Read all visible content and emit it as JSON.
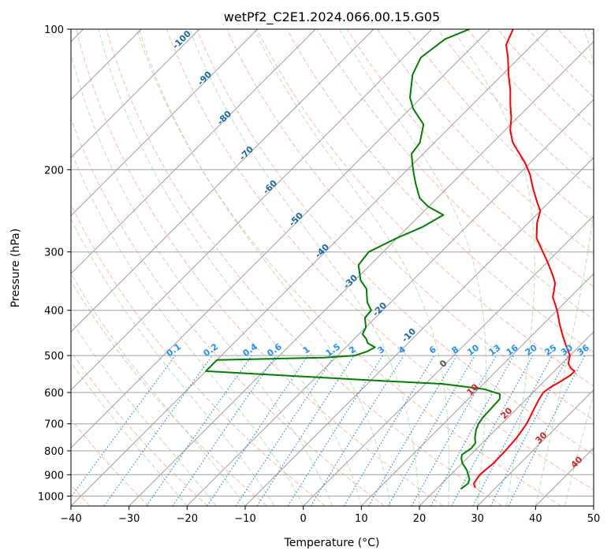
{
  "chart_data": {
    "type": "line",
    "subtype": "skew-t-log-p",
    "title": "wetPf2_C2E1.2024.066.00.15.G05",
    "xlabel": "Temperature (°C)",
    "ylabel": "Pressure (hPa)",
    "xlim": [
      -40,
      50
    ],
    "ylim": [
      1050,
      100
    ],
    "yscale": "log",
    "grid": true,
    "x_ticks": [
      -40,
      -30,
      -20,
      -10,
      0,
      10,
      20,
      30,
      40,
      50
    ],
    "y_ticks": [
      100,
      200,
      300,
      400,
      500,
      600,
      700,
      800,
      900,
      1000
    ],
    "series": [
      {
        "role": "temperature",
        "color": "#ff0000",
        "points": [
          [
            26.5,
            960
          ],
          [
            25.5,
            940
          ],
          [
            25.0,
            900
          ],
          [
            25.4,
            850
          ],
          [
            25.3,
            800
          ],
          [
            25.0,
            750
          ],
          [
            24.3,
            700
          ],
          [
            23.8,
            680
          ],
          [
            23.0,
            650
          ],
          [
            22.2,
            620
          ],
          [
            21.8,
            600
          ],
          [
            22.1,
            585
          ],
          [
            22.8,
            570
          ],
          [
            23.5,
            550
          ],
          [
            23.5,
            540
          ],
          [
            22.3,
            532
          ],
          [
            21.1,
            520
          ],
          [
            20.0,
            500
          ],
          [
            18.0,
            480
          ],
          [
            15.5,
            455
          ],
          [
            13.0,
            430
          ],
          [
            10.0,
            400
          ],
          [
            7.0,
            375
          ],
          [
            5.0,
            350
          ],
          [
            3.0,
            335
          ],
          [
            0.0,
            315
          ],
          [
            -2.5,
            300
          ],
          [
            -6.0,
            280
          ],
          [
            -8.5,
            260
          ],
          [
            -10.0,
            245
          ],
          [
            -12.0,
            235
          ],
          [
            -15.0,
            220
          ],
          [
            -18.0,
            205
          ],
          [
            -21.0,
            193
          ],
          [
            -24.0,
            183
          ],
          [
            -26.5,
            175
          ],
          [
            -29.0,
            165
          ],
          [
            -31.0,
            155
          ],
          [
            -33.5,
            145
          ],
          [
            -36.0,
            135
          ],
          [
            -39.0,
            125
          ],
          [
            -42.0,
            115
          ],
          [
            -44.5,
            108
          ],
          [
            -46.0,
            100
          ]
        ]
      },
      {
        "role": "dewpoint",
        "color": "#008000",
        "points": [
          [
            24.2,
            965
          ],
          [
            24.5,
            940
          ],
          [
            24.0,
            920
          ],
          [
            22.0,
            880
          ],
          [
            20.0,
            850
          ],
          [
            19.0,
            830
          ],
          [
            18.5,
            815
          ],
          [
            19.0,
            790
          ],
          [
            18.8,
            770
          ],
          [
            17.8,
            750
          ],
          [
            16.6,
            720
          ],
          [
            16.0,
            700
          ],
          [
            15.7,
            680
          ],
          [
            15.4,
            620
          ],
          [
            14.6,
            605
          ],
          [
            11.0,
            590
          ],
          [
            3.0,
            575
          ],
          [
            -10.0,
            565
          ],
          [
            -40.0,
            540
          ],
          [
            -40.0,
            511
          ],
          [
            -22.0,
            505
          ],
          [
            -17.0,
            500
          ],
          [
            -15.6,
            490
          ],
          [
            -15.0,
            480
          ],
          [
            -17.0,
            470
          ],
          [
            -18.0,
            460
          ],
          [
            -19.4,
            450
          ],
          [
            -20.0,
            435
          ],
          [
            -21.8,
            415
          ],
          [
            -22.0,
            400
          ],
          [
            -24.0,
            385
          ],
          [
            -25.5,
            370
          ],
          [
            -26.5,
            360
          ],
          [
            -29.0,
            345
          ],
          [
            -32.0,
            320
          ],
          [
            -32.5,
            300
          ],
          [
            -30.0,
            280
          ],
          [
            -27.5,
            265
          ],
          [
            -26.0,
            250
          ],
          [
            -30.0,
            240
          ],
          [
            -33.0,
            230
          ],
          [
            -36.0,
            215
          ],
          [
            -38.0,
            205
          ],
          [
            -40.0,
            195
          ],
          [
            -42.0,
            185
          ],
          [
            -42.5,
            175
          ],
          [
            -45.0,
            160
          ],
          [
            -49.5,
            148
          ],
          [
            -52.0,
            140
          ],
          [
            -55.5,
            125
          ],
          [
            -57.0,
            115
          ],
          [
            -56.0,
            105
          ],
          [
            -53.5,
            100
          ]
        ]
      }
    ],
    "dry_adiabat_labels": [
      "-100",
      "-90",
      "-80",
      "-70",
      "-60",
      "-50",
      "-40",
      "-30",
      "-20",
      "-10",
      "0",
      "10",
      "20",
      "30",
      "40"
    ],
    "mixing_ratio_labels": [
      "0.1",
      "0.2",
      "0.4",
      "0.6",
      "1",
      "1.5",
      "2",
      "3",
      "4",
      "6",
      "8",
      "10",
      "13",
      "16",
      "20",
      "25",
      "30",
      "36"
    ],
    "colors": {
      "isotherm": "#9e9e9e",
      "isobar": "#a0a0a0",
      "dry_adiabat": "#f9a48a",
      "moist_adiabat": "#a8d4a0",
      "mixing_ratio": "#2a8bdc",
      "dry_adiabat_label_upper": "#1a6aa8",
      "dry_adiabat_label_lower": "#d62222",
      "mixing_ratio_label": "#1e90ff"
    }
  }
}
